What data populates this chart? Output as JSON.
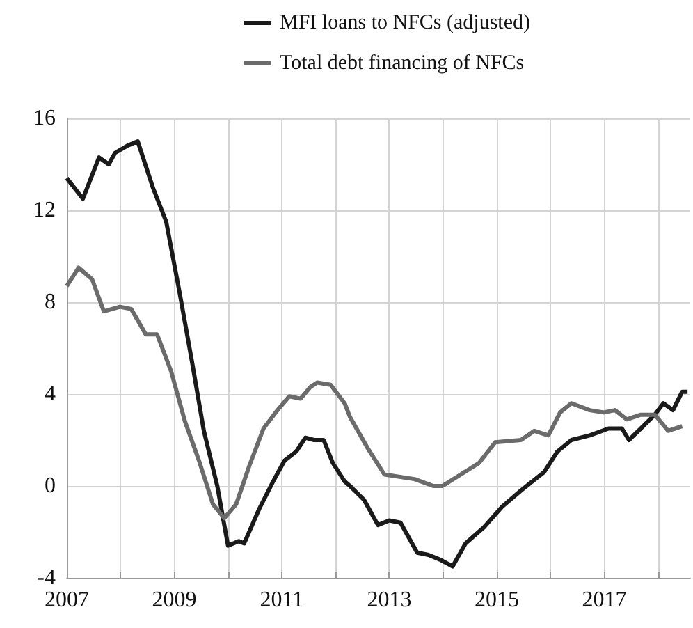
{
  "chart_data": {
    "type": "line",
    "legend": "top",
    "grid": true,
    "marker": "none",
    "line_style": "solid",
    "xlim": [
      2007,
      2018.6
    ],
    "ylim": [
      -4,
      16
    ],
    "xticks": [
      2007,
      {
        "value": 2008,
        "label": null
      },
      2009,
      {
        "value": 2010,
        "label": null
      },
      2011,
      {
        "value": 2012,
        "label": null
      },
      2013,
      {
        "value": 2014,
        "label": null
      },
      2015,
      {
        "value": 2016,
        "label": null
      },
      2017,
      {
        "value": 2018,
        "label": null
      }
    ],
    "yticks": [
      -4,
      0,
      4,
      8,
      12,
      16
    ],
    "series": [
      {
        "name": "MFI loans to NFCs (adjusted)",
        "color": "#1a1a1a",
        "x": [
          2007.0,
          2007.3,
          2007.6,
          2007.78,
          2007.9,
          2008.12,
          2008.32,
          2008.6,
          2008.85,
          2009.1,
          2009.33,
          2009.55,
          2009.8,
          2010.0,
          2010.2,
          2010.3,
          2010.58,
          2010.84,
          2011.05,
          2011.27,
          2011.44,
          2011.6,
          2011.78,
          2011.95,
          2012.17,
          2012.27,
          2012.53,
          2012.79,
          2013.0,
          2013.21,
          2013.52,
          2013.73,
          2013.94,
          2014.18,
          2014.42,
          2014.76,
          2015.1,
          2015.45,
          2015.88,
          2016.13,
          2016.39,
          2016.73,
          2017.08,
          2017.33,
          2017.46,
          2017.68,
          2017.94,
          2018.1,
          2018.28,
          2018.45,
          2018.55
        ],
        "values": [
          13.4,
          12.5,
          14.3,
          14.0,
          14.5,
          14.8,
          15.0,
          13.0,
          11.5,
          8.4,
          5.4,
          2.4,
          0,
          -2.6,
          -2.4,
          -2.5,
          -1.0,
          0.2,
          1.1,
          1.5,
          2.1,
          2.0,
          2.0,
          1.0,
          0.2,
          0.0,
          -0.6,
          -1.7,
          -1.5,
          -1.6,
          -2.9,
          -3.0,
          -3.2,
          -3.5,
          -2.5,
          -1.8,
          -0.9,
          -0.2,
          0.6,
          1.5,
          2.0,
          2.2,
          2.5,
          2.5,
          2.0,
          2.5,
          3.1,
          3.6,
          3.3,
          4.1,
          4.1
        ]
      },
      {
        "name": "Total debt financing of NFCs",
        "color": "#6b6b6b",
        "x": [
          2007.0,
          2007.22,
          2007.47,
          2007.69,
          2007.99,
          2008.2,
          2008.47,
          2008.68,
          2008.94,
          2009.2,
          2009.46,
          2009.72,
          2009.93,
          2010.15,
          2010.4,
          2010.66,
          2010.92,
          2011.14,
          2011.35,
          2011.53,
          2011.66,
          2011.91,
          2012.17,
          2012.27,
          2012.61,
          2012.91,
          2013.47,
          2013.82,
          2013.99,
          2014.33,
          2014.67,
          2014.97,
          2015.45,
          2015.7,
          2015.96,
          2016.18,
          2016.39,
          2016.73,
          2016.99,
          2017.2,
          2017.42,
          2017.68,
          2017.94,
          2018.19,
          2018.45
        ],
        "values": [
          8.7,
          9.5,
          9.0,
          7.6,
          7.8,
          7.7,
          6.6,
          6.6,
          5.0,
          2.8,
          1.1,
          -0.8,
          -1.4,
          -0.8,
          0.9,
          2.5,
          3.3,
          3.9,
          3.8,
          4.3,
          4.5,
          4.4,
          3.6,
          3.0,
          1.6,
          0.5,
          0.3,
          0.0,
          0.0,
          0.5,
          1.0,
          1.9,
          2.0,
          2.4,
          2.2,
          3.2,
          3.6,
          3.3,
          3.2,
          3.3,
          2.9,
          3.1,
          3.1,
          2.4,
          2.6
        ]
      }
    ]
  }
}
